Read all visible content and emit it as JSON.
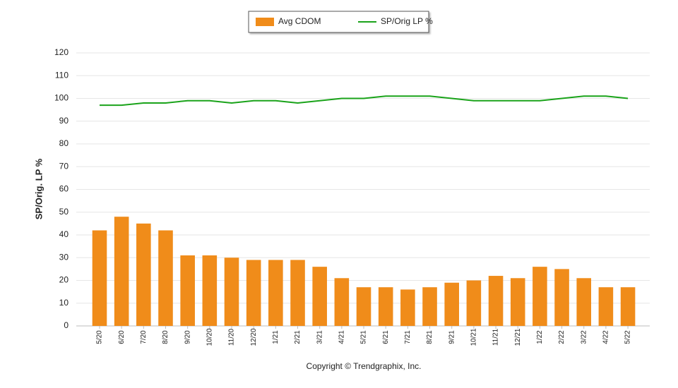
{
  "chart_data": {
    "type": "bar",
    "y_label": "SP/Orig. LP %",
    "footer": "Copyright © Trendgraphix, Inc.",
    "categories": [
      "5/20",
      "6/20",
      "7/20",
      "8/20",
      "9/20",
      "10/20",
      "11/20",
      "12/20",
      "1/21",
      "2/21",
      "3/21",
      "4/21",
      "5/21",
      "6/21",
      "7/21",
      "8/21",
      "9/21",
      "10/21",
      "11/21",
      "12/21",
      "1/22",
      "2/22",
      "3/22",
      "4/22",
      "5/22"
    ],
    "series": [
      {
        "name": "Avg CDOM",
        "type": "bar",
        "color": "#f08c1a",
        "values": [
          42,
          48,
          45,
          42,
          31,
          31,
          30,
          29,
          29,
          29,
          26,
          21,
          17,
          17,
          16,
          17,
          19,
          20,
          22,
          21,
          26,
          25,
          21,
          17,
          17
        ]
      },
      {
        "name": "SP/Orig LP %",
        "type": "line",
        "color": "#1aa31a",
        "values": [
          97,
          97,
          98,
          98,
          99,
          99,
          98,
          99,
          99,
          98,
          99,
          100,
          100,
          101,
          101,
          101,
          100,
          99,
          99,
          99,
          99,
          100,
          101,
          101,
          100
        ]
      }
    ],
    "ylim": [
      0,
      120
    ],
    "yticks": [
      0,
      10,
      20,
      30,
      40,
      50,
      60,
      70,
      80,
      90,
      100,
      110,
      120
    ],
    "grid": true
  }
}
